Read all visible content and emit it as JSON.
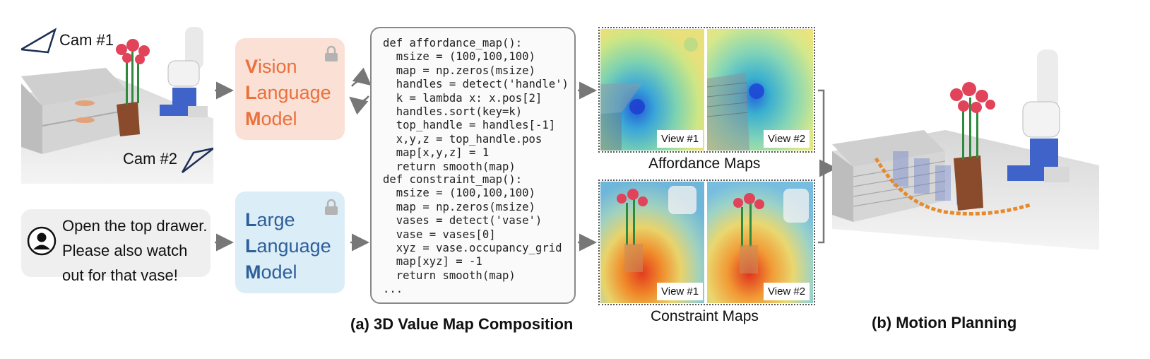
{
  "cameras": {
    "cam1_label": "Cam #1",
    "cam2_label": "Cam #2"
  },
  "vlm": {
    "line1_initial": "V",
    "line1_rest": "ision",
    "line2_initial": "L",
    "line2_rest": "anguage",
    "line3_initial": "M",
    "line3_rest": "odel",
    "accent_color": "#e8713c",
    "bg_color": "#fbe0d6"
  },
  "llm": {
    "line1_initial": "L",
    "line1_rest": "arge",
    "line2_initial": "L",
    "line2_rest": "anguage",
    "line3_initial": "M",
    "line3_rest": "odel",
    "accent_color": "#2e5f99",
    "bg_color": "#dbedf7"
  },
  "instruction": {
    "line1": "Open the top drawer.",
    "line2": "Please also watch",
    "line3": "out for that vase!",
    "icon": "user-icon"
  },
  "code": {
    "affordance_lines": [
      "def affordance_map():",
      "  msize = (100,100,100)",
      "  map = np.zeros(msize)",
      "  handles = detect('handle')",
      "  k = lambda x: x.pos[2]",
      "  handles.sort(key=k)",
      "  top_handle = handles[-1]",
      "  x,y,z = top_handle.pos",
      "  map[x,y,z] = 1",
      "  return smooth(map)"
    ],
    "constraint_lines": [
      "def constraint_map():",
      "  msize = (100,100,100)",
      "  map = np.zeros(msize)",
      "  vases = detect('vase')",
      "  vase = vases[0]",
      "  xyz = vase.occupancy_grid",
      "  map[xyz] = -1",
      "  return smooth(map)",
      "..."
    ]
  },
  "maps": {
    "affordance_title": "Affordance Maps",
    "constraint_title": "Constraint Maps",
    "view1": "View #1",
    "view2": "View #2"
  },
  "captions": {
    "a": "(a) 3D Value Map Composition",
    "b": "(b) Motion Planning"
  }
}
